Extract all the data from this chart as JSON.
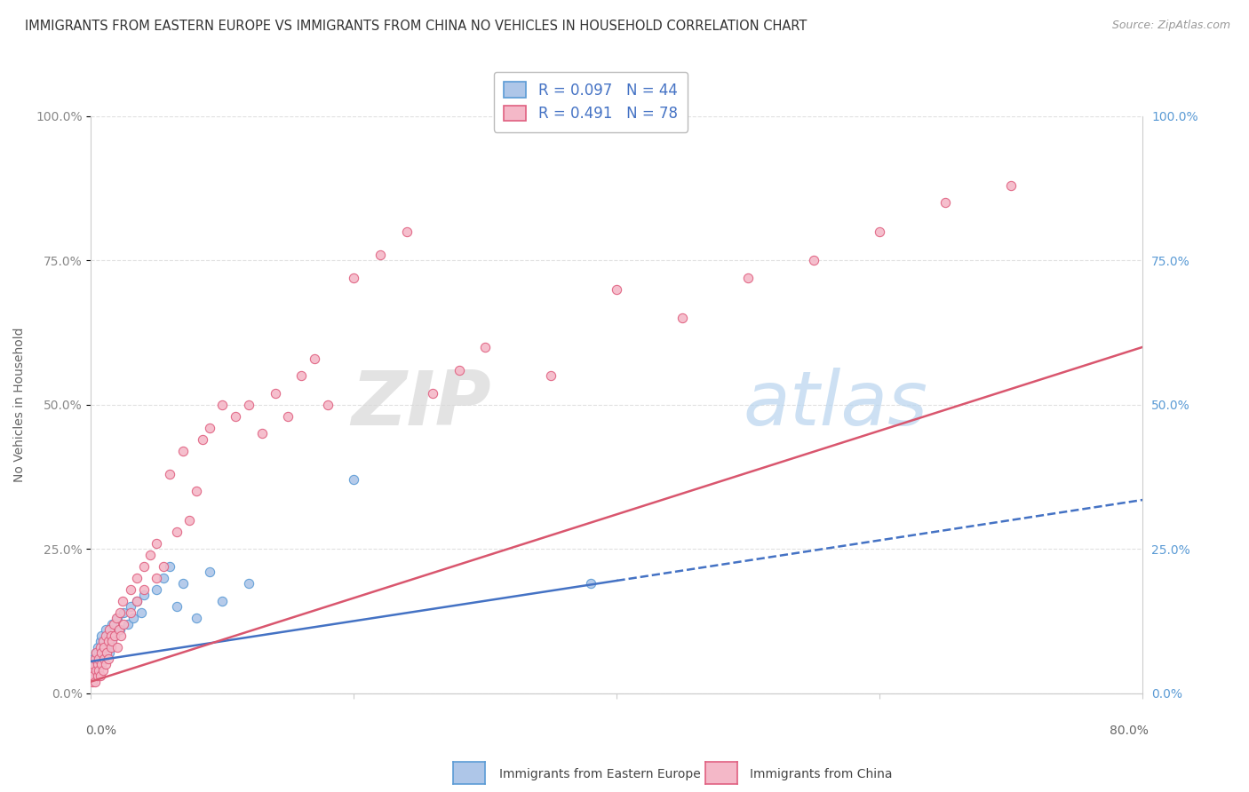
{
  "title": "IMMIGRANTS FROM EASTERN EUROPE VS IMMIGRANTS FROM CHINA NO VEHICLES IN HOUSEHOLD CORRELATION CHART",
  "source": "Source: ZipAtlas.com",
  "ylabel": "No Vehicles in Household",
  "ytick_labels": [
    "0.0%",
    "25.0%",
    "50.0%",
    "75.0%",
    "100.0%"
  ],
  "ytick_values": [
    0.0,
    0.25,
    0.5,
    0.75,
    1.0
  ],
  "xlim": [
    0,
    0.8
  ],
  "ylim": [
    0,
    1.0
  ],
  "series1": {
    "label": "Immigrants from Eastern Europe",
    "color": "#aec6e8",
    "edge_color": "#5b9bd5",
    "R": 0.097,
    "N": 44,
    "trend_x0": 0.0,
    "trend_y0": 0.055,
    "trend_x1": 0.4,
    "trend_y1": 0.195,
    "x": [
      0.001,
      0.002,
      0.002,
      0.003,
      0.004,
      0.004,
      0.005,
      0.005,
      0.006,
      0.006,
      0.007,
      0.007,
      0.008,
      0.008,
      0.009,
      0.01,
      0.01,
      0.011,
      0.012,
      0.013,
      0.014,
      0.015,
      0.016,
      0.018,
      0.02,
      0.022,
      0.025,
      0.028,
      0.03,
      0.032,
      0.035,
      0.038,
      0.04,
      0.05,
      0.055,
      0.06,
      0.065,
      0.07,
      0.08,
      0.09,
      0.1,
      0.12,
      0.2,
      0.38
    ],
    "y": [
      0.03,
      0.04,
      0.06,
      0.05,
      0.07,
      0.04,
      0.06,
      0.08,
      0.05,
      0.07,
      0.06,
      0.09,
      0.05,
      0.1,
      0.08,
      0.06,
      0.09,
      0.11,
      0.08,
      0.1,
      0.07,
      0.09,
      0.12,
      0.1,
      0.13,
      0.11,
      0.14,
      0.12,
      0.15,
      0.13,
      0.16,
      0.14,
      0.17,
      0.18,
      0.2,
      0.22,
      0.15,
      0.19,
      0.13,
      0.21,
      0.16,
      0.19,
      0.37,
      0.19
    ]
  },
  "series2": {
    "label": "Immigrants from China",
    "color": "#f4b8c8",
    "edge_color": "#e06080",
    "R": 0.491,
    "N": 78,
    "trend_x0": 0.0,
    "trend_y0": 0.02,
    "trend_x1": 0.8,
    "trend_y1": 0.6,
    "x": [
      0.001,
      0.001,
      0.002,
      0.002,
      0.003,
      0.003,
      0.004,
      0.004,
      0.005,
      0.005,
      0.006,
      0.006,
      0.007,
      0.007,
      0.008,
      0.008,
      0.009,
      0.009,
      0.01,
      0.01,
      0.011,
      0.011,
      0.012,
      0.013,
      0.013,
      0.014,
      0.015,
      0.015,
      0.016,
      0.017,
      0.018,
      0.019,
      0.02,
      0.021,
      0.022,
      0.023,
      0.024,
      0.025,
      0.03,
      0.03,
      0.035,
      0.035,
      0.04,
      0.04,
      0.045,
      0.05,
      0.05,
      0.055,
      0.06,
      0.065,
      0.07,
      0.075,
      0.08,
      0.085,
      0.09,
      0.1,
      0.11,
      0.12,
      0.13,
      0.14,
      0.15,
      0.16,
      0.17,
      0.18,
      0.2,
      0.22,
      0.24,
      0.26,
      0.28,
      0.3,
      0.35,
      0.4,
      0.45,
      0.5,
      0.55,
      0.6,
      0.65,
      0.7
    ],
    "y": [
      0.02,
      0.04,
      0.03,
      0.05,
      0.02,
      0.06,
      0.04,
      0.07,
      0.03,
      0.05,
      0.04,
      0.06,
      0.03,
      0.08,
      0.05,
      0.07,
      0.04,
      0.09,
      0.06,
      0.08,
      0.05,
      0.1,
      0.07,
      0.09,
      0.06,
      0.11,
      0.08,
      0.1,
      0.09,
      0.12,
      0.1,
      0.13,
      0.08,
      0.11,
      0.14,
      0.1,
      0.16,
      0.12,
      0.18,
      0.14,
      0.2,
      0.16,
      0.22,
      0.18,
      0.24,
      0.2,
      0.26,
      0.22,
      0.38,
      0.28,
      0.42,
      0.3,
      0.35,
      0.44,
      0.46,
      0.5,
      0.48,
      0.5,
      0.45,
      0.52,
      0.48,
      0.55,
      0.58,
      0.5,
      0.72,
      0.76,
      0.8,
      0.52,
      0.56,
      0.6,
      0.55,
      0.7,
      0.65,
      0.72,
      0.75,
      0.8,
      0.85,
      0.88
    ]
  },
  "watermark": "ZIPatlas",
  "background_color": "#ffffff",
  "grid_color": "#e0e0e0",
  "title_fontsize": 10.5,
  "axis_label_fontsize": 10,
  "tick_fontsize": 10,
  "legend_fontsize": 12,
  "scatter_size": 55,
  "series1_line_color": "#4472c4",
  "series1_line_style": "--",
  "series2_line_color": "#d9566e",
  "series2_line_style": "-"
}
